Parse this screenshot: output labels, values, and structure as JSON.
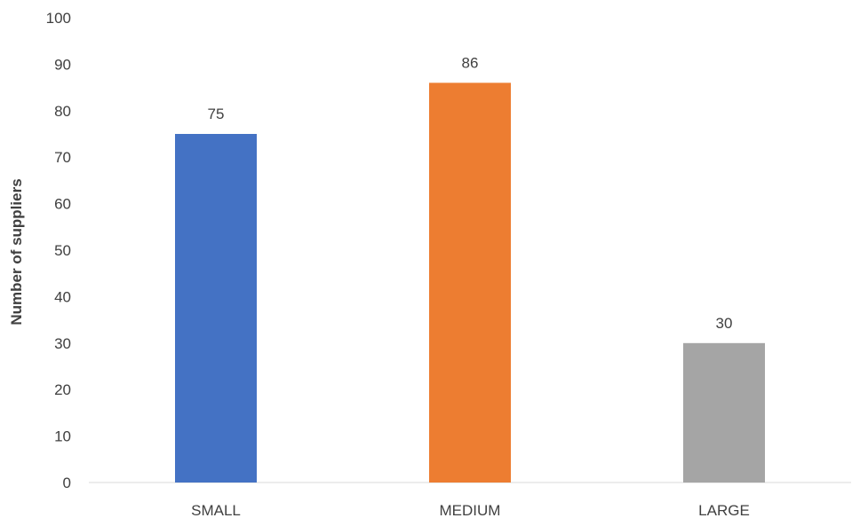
{
  "chart_data": {
    "type": "bar",
    "categories": [
      "SMALL",
      "MEDIUM",
      "LARGE"
    ],
    "values": [
      75,
      86,
      30
    ],
    "data_labels": [
      "75",
      "86",
      "30"
    ],
    "colors": [
      "#4472C4",
      "#ED7D31",
      "#A5A5A5"
    ],
    "title": "",
    "xlabel": "",
    "ylabel": "Number of suppliers",
    "ylim": [
      0,
      100
    ],
    "yticks": [
      0,
      10,
      20,
      30,
      40,
      50,
      60,
      70,
      80,
      90,
      100
    ],
    "grid": false,
    "legend": "none"
  }
}
